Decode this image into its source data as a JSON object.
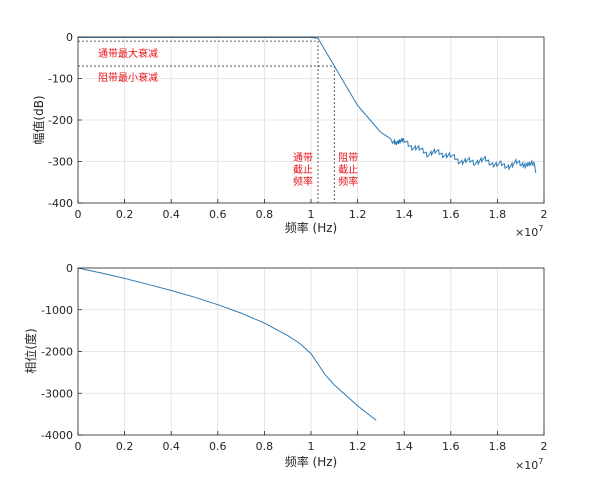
{
  "chart_data": [
    {
      "type": "line",
      "xlabel": "频率 (Hz)",
      "ylabel": "幅值(dB)",
      "x_exponent": "×10",
      "x_exponent_power": "7",
      "xlim": [
        0,
        20000000
      ],
      "ylim": [
        -400,
        0
      ],
      "xticks": [
        0,
        2000000,
        4000000,
        6000000,
        8000000,
        10000000,
        12000000,
        14000000,
        16000000,
        18000000,
        20000000
      ],
      "xtick_labels": [
        "0",
        "0.2",
        "0.4",
        "0.6",
        "0.8",
        "1",
        "1.2",
        "1.4",
        "1.6",
        "1.8",
        "2"
      ],
      "yticks": [
        0,
        -100,
        -200,
        -300,
        -400
      ],
      "ytick_labels": [
        "0",
        "-100",
        "-200",
        "-300",
        "-400"
      ],
      "grid": true,
      "series_color": "#2c7bb6",
      "series": [
        {
          "x": [
            0,
            10000000,
            10300000,
            11000000,
            12000000,
            13000000,
            13500000,
            14000000,
            15000000,
            16000000,
            17000000,
            18000000,
            19000000,
            19600000
          ],
          "y": [
            -1,
            -1,
            -3,
            -70,
            -165,
            -230,
            -248,
            -258,
            -275,
            -290,
            -300,
            -305,
            -308,
            -310
          ]
        }
      ],
      "reference_lines": {
        "passband_max_atten": -10,
        "stopband_min_atten": -70,
        "passband_cutoff": 10300000,
        "stopband_cutoff": 11000000,
        "color": "#333333"
      },
      "annotations": {
        "color": "#e8141a",
        "passband_max_label": "通带最大衰减",
        "stopband_min_label": "阻带最小衰减",
        "passband_cutoff_label": [
          "通带",
          "截止",
          "频率"
        ],
        "stopband_cutoff_label": [
          "阻带",
          "截止",
          "频率"
        ]
      }
    },
    {
      "type": "line",
      "xlabel": "频率 (Hz)",
      "ylabel": "相位(度)",
      "x_exponent": "×10",
      "x_exponent_power": "7",
      "xlim": [
        0,
        20000000
      ],
      "ylim": [
        -4000,
        0
      ],
      "xticks": [
        0,
        2000000,
        4000000,
        6000000,
        8000000,
        10000000,
        12000000,
        14000000,
        16000000,
        18000000,
        20000000
      ],
      "xtick_labels": [
        "0",
        "0.2",
        "0.4",
        "0.6",
        "0.8",
        "1",
        "1.2",
        "1.4",
        "1.6",
        "1.8",
        "2"
      ],
      "yticks": [
        0,
        -1000,
        -2000,
        -3000,
        -4000
      ],
      "ytick_labels": [
        "0",
        "-1000",
        "-2000",
        "-3000",
        "-4000"
      ],
      "grid": true,
      "series_color": "#2c7bb6",
      "series": [
        {
          "x": [
            0,
            1000000,
            2000000,
            3000000,
            4000000,
            5000000,
            6000000,
            7000000,
            8000000,
            9000000,
            9500000,
            10000000,
            10300000,
            10600000,
            11000000,
            12000000,
            12800000
          ],
          "y": [
            0,
            -120,
            -250,
            -390,
            -540,
            -700,
            -880,
            -1080,
            -1320,
            -1620,
            -1800,
            -2050,
            -2300,
            -2550,
            -2800,
            -3300,
            -3650
          ]
        }
      ]
    }
  ]
}
